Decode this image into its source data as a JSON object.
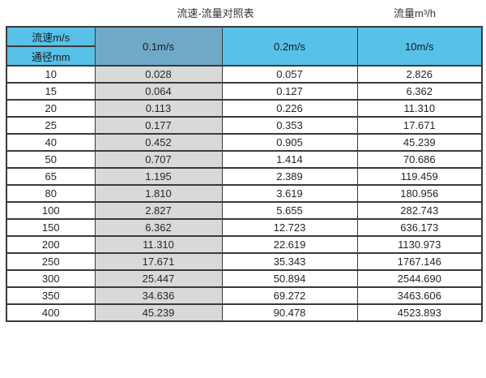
{
  "titles": {
    "left": "流速-流量对照表",
    "right": "流量m³/h"
  },
  "table": {
    "corner_top": "流速m/s",
    "corner_bottom": "通径mm",
    "columns": [
      "0.1m/s",
      "0.2m/s",
      "10m/s"
    ],
    "rows": [
      [
        "10",
        "0.028",
        "0.057",
        "2.826"
      ],
      [
        "15",
        "0.064",
        "0.127",
        "6.362"
      ],
      [
        "20",
        "0.113",
        "0.226",
        "11.310"
      ],
      [
        "25",
        "0.177",
        "0.353",
        "17.671"
      ],
      [
        "40",
        "0.452",
        "0.905",
        "45.239"
      ],
      [
        "50",
        "0.707",
        "1.414",
        "70.686"
      ],
      [
        "65",
        "1.195",
        "2.389",
        "119.459"
      ],
      [
        "80",
        "1.810",
        "3.619",
        "180.956"
      ],
      [
        "100",
        "2.827",
        "5.655",
        "282.743"
      ],
      [
        "150",
        "6.362",
        "12.723",
        "636.173"
      ],
      [
        "200",
        "11.310",
        "22.619",
        "1130.973"
      ],
      [
        "250",
        "17.671",
        "35.343",
        "1767.146"
      ],
      [
        "300",
        "25.447",
        "50.894",
        "2544.690"
      ],
      [
        "350",
        "34.636",
        "69.272",
        "3463.606"
      ],
      [
        "400",
        "45.239",
        "90.478",
        "4523.893"
      ]
    ]
  },
  "colors": {
    "header_blue": "#57C1E9",
    "velocity01_blue": "#6FA9C8",
    "gray_cell": "#D9D9D9",
    "border": "#3A3A3A"
  },
  "chart_data": {
    "type": "table",
    "title": "流速-流量对照表",
    "unit": "流量m³/h",
    "row_header": "通径mm",
    "col_header": "流速m/s",
    "columns": [
      "0.1m/s",
      "0.2m/s",
      "10m/s"
    ],
    "diameters_mm": [
      10,
      15,
      20,
      25,
      40,
      50,
      65,
      80,
      100,
      150,
      200,
      250,
      300,
      350,
      400
    ],
    "series": [
      {
        "name": "0.1m/s",
        "values": [
          0.028,
          0.064,
          0.113,
          0.177,
          0.452,
          0.707,
          1.195,
          1.81,
          2.827,
          6.362,
          11.31,
          17.671,
          25.447,
          34.636,
          45.239
        ]
      },
      {
        "name": "0.2m/s",
        "values": [
          0.057,
          0.127,
          0.226,
          0.353,
          0.905,
          1.414,
          2.389,
          3.619,
          5.655,
          12.723,
          22.619,
          35.343,
          50.894,
          69.272,
          90.478
        ]
      },
      {
        "name": "10m/s",
        "values": [
          2.826,
          6.362,
          11.31,
          17.671,
          45.239,
          70.686,
          119.459,
          180.956,
          282.743,
          636.173,
          1130.973,
          1767.146,
          2544.69,
          3463.606,
          4523.893
        ]
      }
    ]
  }
}
